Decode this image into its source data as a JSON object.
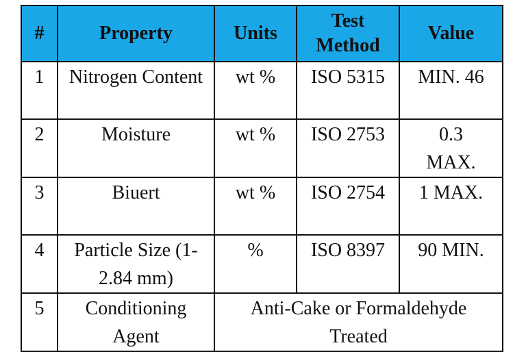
{
  "header": [
    "#",
    "Property",
    "Units",
    "Test Method",
    "Value"
  ],
  "header_color": "#1aa7e8",
  "rows": [
    {
      "num": "1",
      "property": "Nitrogen Content",
      "units": "wt %",
      "method": "ISO 5315",
      "value": "MIN. 46"
    },
    {
      "num": "2",
      "property": "Moisture",
      "units": "wt %",
      "method": "ISO 2753",
      "value": "0.3 MAX."
    },
    {
      "num": "3",
      "property": "Biuert",
      "units": "wt %",
      "method": "ISO 2754",
      "value": "1 MAX."
    },
    {
      "num": "4",
      "property": "Particle Size (1-2.84 mm)",
      "units": "%",
      "method": "ISO 8397",
      "value": "90 MIN."
    },
    {
      "num": "5",
      "property": "Conditioning Agent",
      "merged": "Anti-Cake or Formaldehyde Treated"
    }
  ]
}
